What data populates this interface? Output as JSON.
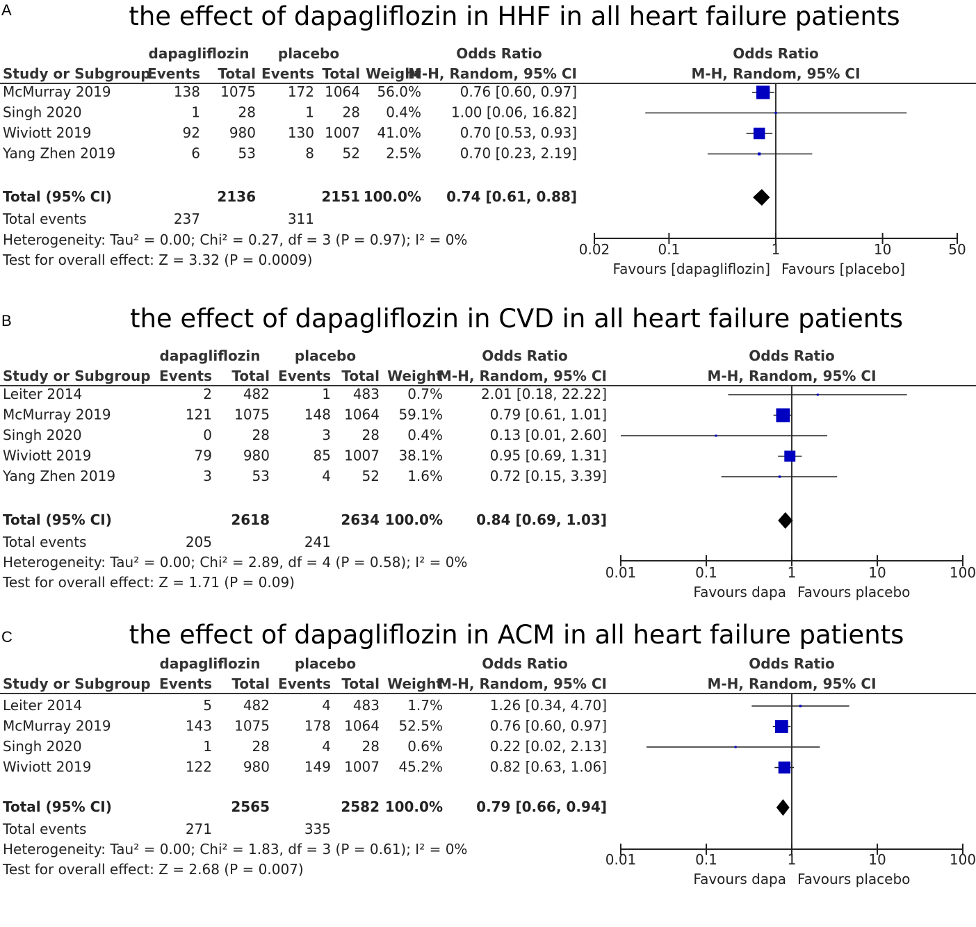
{
  "headers": {
    "study_col": "Study or Subgroup",
    "events": "Events",
    "total": "Total",
    "weight": "Weight",
    "or_title": "Odds Ratio",
    "or_method": "M-H, Random, 95% CI"
  },
  "chart_data": [
    {
      "type": "forest",
      "label": "A",
      "title": "the effect of dapagliflozin in HHF in all heart failure patients",
      "exp_name": "dapagliflozin",
      "ctl_name": "placebo",
      "studies": [
        {
          "name": "McMurray 2019",
          "e1": "138",
          "n1": "1075",
          "e2": "172",
          "n2": "1064",
          "weight": "56.0%",
          "ci_text": "0.76 [0.60, 0.97]",
          "or": 0.76,
          "lo": 0.6,
          "hi": 0.97,
          "w": 56.0
        },
        {
          "name": "Singh 2020",
          "e1": "1",
          "n1": "28",
          "e2": "1",
          "n2": "28",
          "weight": "0.4%",
          "ci_text": "1.00 [0.06, 16.82]",
          "or": 1.0,
          "lo": 0.06,
          "hi": 16.82,
          "w": 0.4
        },
        {
          "name": "Wiviott 2019",
          "e1": "92",
          "n1": "980",
          "e2": "130",
          "n2": "1007",
          "weight": "41.0%",
          "ci_text": "0.70 [0.53, 0.93]",
          "or": 0.7,
          "lo": 0.53,
          "hi": 0.93,
          "w": 41.0
        },
        {
          "name": "Yang Zhen 2019",
          "e1": "6",
          "n1": "53",
          "e2": "8",
          "n2": "52",
          "weight": "2.5%",
          "ci_text": "0.70 [0.23, 2.19]",
          "or": 0.7,
          "lo": 0.23,
          "hi": 2.19,
          "w": 2.5
        }
      ],
      "total": {
        "label": "Total (95% CI)",
        "n1": "2136",
        "n2": "2151",
        "weight": "100.0%",
        "ci_text": "0.74 [0.61, 0.88]",
        "or": 0.74,
        "lo": 0.61,
        "hi": 0.88
      },
      "total_events": {
        "label": "Total events",
        "e1": "237",
        "e2": "311"
      },
      "heterogeneity": "Heterogeneity: Tau² = 0.00; Chi² = 0.27, df = 3 (P = 0.97); I² = 0%",
      "overall": "Test for overall effect: Z = 3.32 (P = 0.0009)",
      "axis_min": 0.02,
      "axis_max": 50,
      "ticks": [
        {
          "v": 0.02,
          "label": "0.02"
        },
        {
          "v": 0.1,
          "label": "0.1"
        },
        {
          "v": 1,
          "label": "1"
        },
        {
          "v": 10,
          "label": "10"
        },
        {
          "v": 50,
          "label": "50"
        }
      ],
      "favours_left": "Favours [dapagliflozin]",
      "favours_right": "Favours [placebo]"
    },
    {
      "type": "forest",
      "label": "B",
      "title": "the effect of dapagliflozin in CVD in all heart failure patients",
      "exp_name": "dapagliflozin",
      "ctl_name": "placebo",
      "studies": [
        {
          "name": "Leiter 2014",
          "e1": "2",
          "n1": "482",
          "e2": "1",
          "n2": "483",
          "weight": "0.7%",
          "ci_text": "2.01 [0.18, 22.22]",
          "or": 2.01,
          "lo": 0.18,
          "hi": 22.22,
          "w": 0.7
        },
        {
          "name": "McMurray 2019",
          "e1": "121",
          "n1": "1075",
          "e2": "148",
          "n2": "1064",
          "weight": "59.1%",
          "ci_text": "0.79 [0.61, 1.01]",
          "or": 0.79,
          "lo": 0.61,
          "hi": 1.01,
          "w": 59.1
        },
        {
          "name": "Singh 2020",
          "e1": "0",
          "n1": "28",
          "e2": "3",
          "n2": "28",
          "weight": "0.4%",
          "ci_text": "0.13 [0.01, 2.60]",
          "or": 0.13,
          "lo": 0.01,
          "hi": 2.6,
          "w": 0.4
        },
        {
          "name": "Wiviott 2019",
          "e1": "79",
          "n1": "980",
          "e2": "85",
          "n2": "1007",
          "weight": "38.1%",
          "ci_text": "0.95 [0.69, 1.31]",
          "or": 0.95,
          "lo": 0.69,
          "hi": 1.31,
          "w": 38.1
        },
        {
          "name": "Yang Zhen 2019",
          "e1": "3",
          "n1": "53",
          "e2": "4",
          "n2": "52",
          "weight": "1.6%",
          "ci_text": "0.72 [0.15, 3.39]",
          "or": 0.72,
          "lo": 0.15,
          "hi": 3.39,
          "w": 1.6
        }
      ],
      "total": {
        "label": "Total (95% CI)",
        "n1": "2618",
        "n2": "2634",
        "weight": "100.0%",
        "ci_text": "0.84 [0.69, 1.03]",
        "or": 0.84,
        "lo": 0.69,
        "hi": 1.03
      },
      "total_events": {
        "label": "Total events",
        "e1": "205",
        "e2": "241"
      },
      "heterogeneity": "Heterogeneity: Tau² = 0.00; Chi² = 2.89, df = 4 (P = 0.58); I² = 0%",
      "overall": "Test for overall effect: Z = 1.71 (P = 0.09)",
      "axis_min": 0.01,
      "axis_max": 100,
      "ticks": [
        {
          "v": 0.01,
          "label": "0.01"
        },
        {
          "v": 0.1,
          "label": "0.1"
        },
        {
          "v": 1,
          "label": "1"
        },
        {
          "v": 10,
          "label": "10"
        },
        {
          "v": 100,
          "label": "100"
        }
      ],
      "favours_left": "Favours dapa",
      "favours_right": "Favours placebo"
    },
    {
      "type": "forest",
      "label": "C",
      "title": "the effect of dapagliflozin in ACM in all heart failure patients",
      "exp_name": "dapagliflozin",
      "ctl_name": "placebo",
      "studies": [
        {
          "name": "Leiter 2014",
          "e1": "5",
          "n1": "482",
          "e2": "4",
          "n2": "483",
          "weight": "1.7%",
          "ci_text": "1.26 [0.34, 4.70]",
          "or": 1.26,
          "lo": 0.34,
          "hi": 4.7,
          "w": 1.7
        },
        {
          "name": "McMurray 2019",
          "e1": "143",
          "n1": "1075",
          "e2": "178",
          "n2": "1064",
          "weight": "52.5%",
          "ci_text": "0.76 [0.60, 0.97]",
          "or": 0.76,
          "lo": 0.6,
          "hi": 0.97,
          "w": 52.5
        },
        {
          "name": "Singh 2020",
          "e1": "1",
          "n1": "28",
          "e2": "4",
          "n2": "28",
          "weight": "0.6%",
          "ci_text": "0.22 [0.02, 2.13]",
          "or": 0.22,
          "lo": 0.02,
          "hi": 2.13,
          "w": 0.6
        },
        {
          "name": "Wiviott 2019",
          "e1": "122",
          "n1": "980",
          "e2": "149",
          "n2": "1007",
          "weight": "45.2%",
          "ci_text": "0.82 [0.63, 1.06]",
          "or": 0.82,
          "lo": 0.63,
          "hi": 1.06,
          "w": 45.2
        }
      ],
      "total": {
        "label": "Total (95% CI)",
        "n1": "2565",
        "n2": "2582",
        "weight": "100.0%",
        "ci_text": "0.79 [0.66, 0.94]",
        "or": 0.79,
        "lo": 0.66,
        "hi": 0.94
      },
      "total_events": {
        "label": "Total events",
        "e1": "271",
        "e2": "335"
      },
      "heterogeneity": "Heterogeneity: Tau² = 0.00; Chi² = 1.83, df = 3 (P = 0.61); I² = 0%",
      "overall": "Test for overall effect: Z = 2.68 (P = 0.007)",
      "axis_min": 0.01,
      "axis_max": 100,
      "ticks": [
        {
          "v": 0.01,
          "label": "0.01"
        },
        {
          "v": 0.1,
          "label": "0.1"
        },
        {
          "v": 1,
          "label": "1"
        },
        {
          "v": 10,
          "label": "10"
        },
        {
          "v": 100,
          "label": "100"
        }
      ],
      "favours_left": "Favours dapa",
      "favours_right": "Favours placebo"
    }
  ]
}
